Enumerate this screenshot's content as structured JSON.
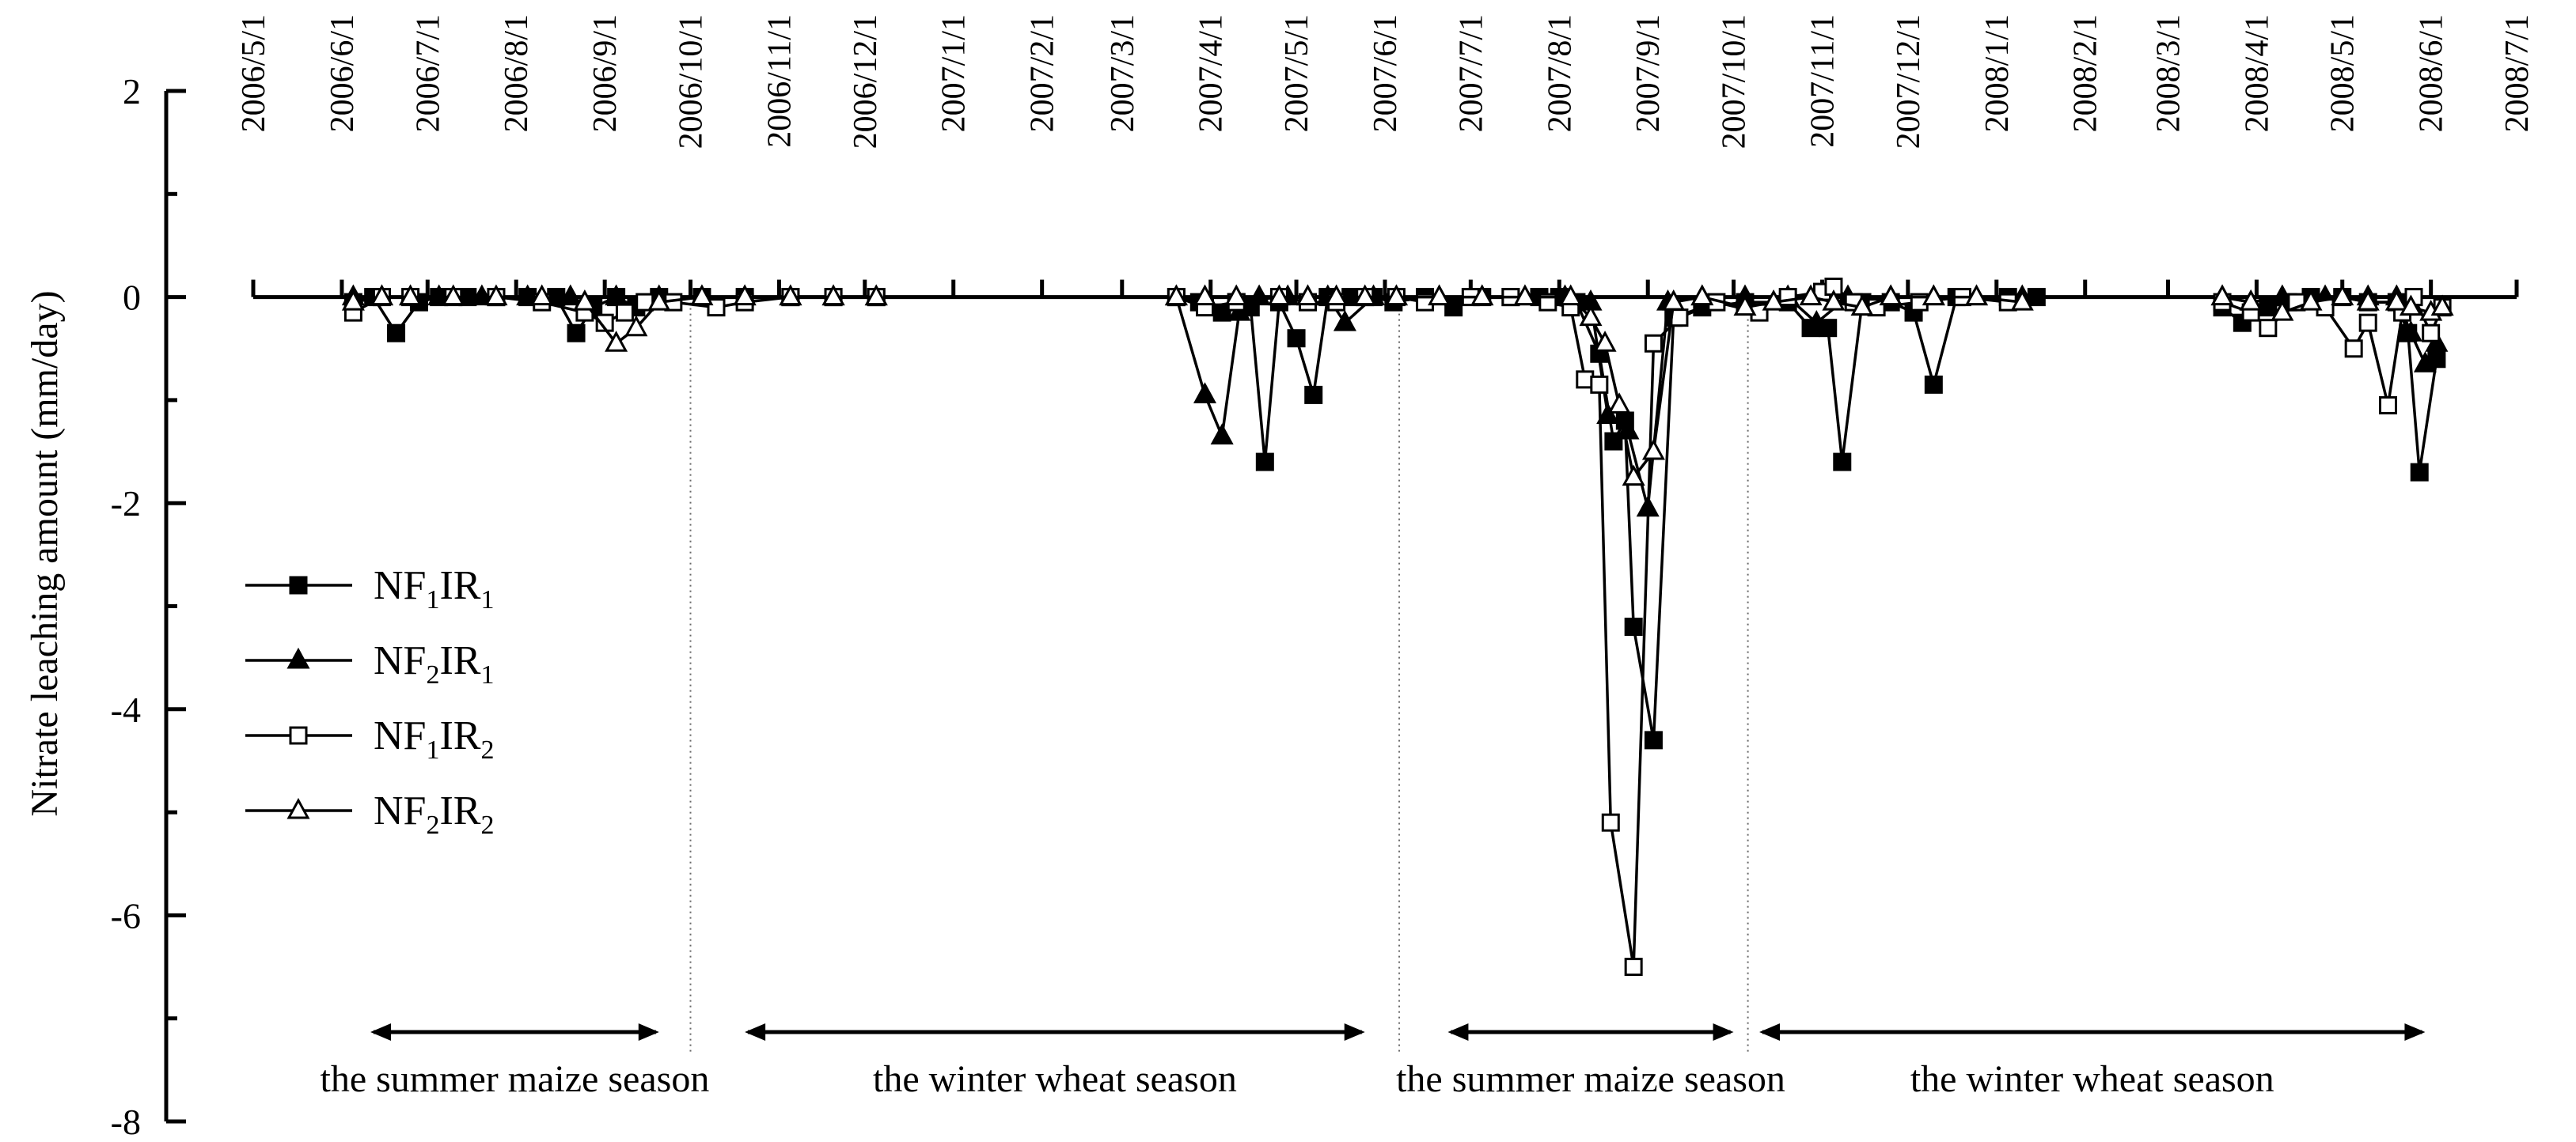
{
  "chart_data": {
    "type": "line",
    "ylabel": "Nitrate leaching amount (mm/day)",
    "ylim": [
      -8,
      2
    ],
    "yticks": [
      2,
      0,
      -2,
      -4,
      -6,
      -8
    ],
    "x_tick_labels": [
      "2006/5/1",
      "2006/6/1",
      "2006/7/1",
      "2006/8/1",
      "2006/9/1",
      "2006/10/1",
      "2006/11/1",
      "2006/12/1",
      "2007/1/1",
      "2007/2/1",
      "2007/3/1",
      "2007/4/1",
      "2007/5/1",
      "2007/6/1",
      "2007/7/1",
      "2007/8/1",
      "2007/9/1",
      "2007/10/1",
      "2007/11/1",
      "2007/12/1",
      "2008/1/1",
      "2008/2/1",
      "2008/3/1",
      "2008/4/1",
      "2008/5/1",
      "2008/6/1",
      "2008/7/1"
    ],
    "xlim": [
      "2006/5/1",
      "2008/7/1"
    ],
    "season_dividers": [
      "2006/10/1",
      "2007/6/6",
      "2007/10/6"
    ],
    "season_labels": [
      {
        "text": "the summer maize season",
        "start": "2006/6/11",
        "end": "2006/9/20"
      },
      {
        "text": "the winter wheat season",
        "start": "2006/10/20",
        "end": "2007/5/25"
      },
      {
        "text": "the summer maize season",
        "start": "2007/6/23",
        "end": "2007/10/1"
      },
      {
        "text": "the winter wheat season",
        "start": "2007/10/10",
        "end": "2008/5/30"
      }
    ],
    "legend_position": "left",
    "series": [
      {
        "name": "NF1IR1",
        "label_parts": [
          "NF",
          "1",
          "IR",
          "1"
        ],
        "marker": "square-filled",
        "points": [
          [
            "2006/6/5",
            -0.05
          ],
          [
            "2006/6/12",
            0
          ],
          [
            "2006/6/20",
            -0.35
          ],
          [
            "2006/6/28",
            -0.05
          ],
          [
            "2006/7/5",
            0
          ],
          [
            "2006/7/15",
            0
          ],
          [
            "2006/7/25",
            0
          ],
          [
            "2006/8/5",
            0
          ],
          [
            "2006/8/15",
            0
          ],
          [
            "2006/8/22",
            -0.35
          ],
          [
            "2006/8/28",
            -0.1
          ],
          [
            "2006/9/5",
            0
          ],
          [
            "2006/9/12",
            -0.1
          ],
          [
            "2006/9/20",
            0
          ],
          [
            "2006/10/5",
            0
          ],
          [
            "2006/10/20",
            0
          ],
          [
            "2006/11/5",
            0
          ],
          [
            "2006/11/20",
            0
          ],
          [
            "2006/12/5",
            0
          ],
          [
            "2007/3/20",
            0
          ],
          [
            "2007/3/28",
            -0.05
          ],
          [
            "2007/4/5",
            -0.15
          ],
          [
            "2007/4/10",
            -0.05
          ],
          [
            "2007/4/15",
            -0.1
          ],
          [
            "2007/4/20",
            -1.6
          ],
          [
            "2007/4/25",
            -0.05
          ],
          [
            "2007/5/1",
            -0.4
          ],
          [
            "2007/5/7",
            -0.95
          ],
          [
            "2007/5/12",
            0
          ],
          [
            "2007/5/20",
            0
          ],
          [
            "2007/5/28",
            0
          ],
          [
            "2007/6/4",
            -0.05
          ],
          [
            "2007/6/15",
            0
          ],
          [
            "2007/6/25",
            -0.1
          ],
          [
            "2007/7/5",
            0
          ],
          [
            "2007/7/15",
            0
          ],
          [
            "2007/7/25",
            0
          ],
          [
            "2007/8/1",
            0
          ],
          [
            "2007/8/7",
            -0.05
          ],
          [
            "2007/8/15",
            -0.55
          ],
          [
            "2007/8/20",
            -1.4
          ],
          [
            "2007/8/24",
            -1.2
          ],
          [
            "2007/8/27",
            -3.2
          ],
          [
            "2007/9/3",
            -4.3
          ],
          [
            "2007/9/10",
            -0.2
          ],
          [
            "2007/9/20",
            -0.1
          ],
          [
            "2007/10/5",
            -0.05
          ],
          [
            "2007/10/20",
            -0.05
          ],
          [
            "2007/10/28",
            -0.3
          ],
          [
            "2007/11/3",
            -0.3
          ],
          [
            "2007/11/8",
            -1.6
          ],
          [
            "2007/11/15",
            -0.05
          ],
          [
            "2007/11/25",
            -0.05
          ],
          [
            "2007/12/3",
            -0.15
          ],
          [
            "2007/12/10",
            -0.85
          ],
          [
            "2007/12/18",
            0
          ],
          [
            "2008/1/5",
            0
          ],
          [
            "2008/1/15",
            0
          ],
          [
            "2008/3/20",
            -0.1
          ],
          [
            "2008/3/27",
            -0.25
          ],
          [
            "2008/4/5",
            -0.1
          ],
          [
            "2008/4/12",
            -0.05
          ],
          [
            "2008/4/20",
            0
          ],
          [
            "2008/5/1",
            0
          ],
          [
            "2008/5/10",
            -0.05
          ],
          [
            "2008/5/20",
            -0.05
          ],
          [
            "2008/5/24",
            -0.35
          ],
          [
            "2008/5/28",
            -1.7
          ],
          [
            "2008/6/3",
            -0.6
          ]
        ]
      },
      {
        "name": "NF2IR1",
        "label_parts": [
          "NF",
          "2",
          "IR",
          "1"
        ],
        "marker": "triangle-filled",
        "points": [
          [
            "2006/6/5",
            0
          ],
          [
            "2006/6/15",
            0
          ],
          [
            "2006/6/25",
            0
          ],
          [
            "2006/7/5",
            0
          ],
          [
            "2006/7/20",
            0
          ],
          [
            "2006/8/5",
            0
          ],
          [
            "2006/8/20",
            0
          ],
          [
            "2006/9/5",
            0
          ],
          [
            "2006/9/20",
            0
          ],
          [
            "2006/10/5",
            0
          ],
          [
            "2006/10/20",
            0
          ],
          [
            "2006/11/5",
            0
          ],
          [
            "2006/11/20",
            0
          ],
          [
            "2006/12/5",
            0
          ],
          [
            "2007/3/20",
            0
          ],
          [
            "2007/3/30",
            -0.95
          ],
          [
            "2007/4/5",
            -1.35
          ],
          [
            "2007/4/11",
            -0.15
          ],
          [
            "2007/4/18",
            0
          ],
          [
            "2007/4/28",
            0
          ],
          [
            "2007/5/5",
            0
          ],
          [
            "2007/5/12",
            0
          ],
          [
            "2007/5/18",
            -0.25
          ],
          [
            "2007/5/28",
            0
          ],
          [
            "2007/6/5",
            0
          ],
          [
            "2007/6/20",
            0
          ],
          [
            "2007/7/5",
            0
          ],
          [
            "2007/7/20",
            0
          ],
          [
            "2007/8/3",
            0
          ],
          [
            "2007/8/12",
            -0.05
          ],
          [
            "2007/8/18",
            -1.15
          ],
          [
            "2007/8/25",
            -1.3
          ],
          [
            "2007/9/1",
            -2.05
          ],
          [
            "2007/9/8",
            -0.05
          ],
          [
            "2007/9/20",
            0
          ],
          [
            "2007/10/5",
            0
          ],
          [
            "2007/10/20",
            0
          ],
          [
            "2007/10/30",
            -0.25
          ],
          [
            "2007/11/10",
            0
          ],
          [
            "2007/11/25",
            0
          ],
          [
            "2007/12/10",
            0
          ],
          [
            "2007/12/25",
            0
          ],
          [
            "2008/1/10",
            0
          ],
          [
            "2008/3/20",
            0
          ],
          [
            "2008/3/30",
            -0.05
          ],
          [
            "2008/4/10",
            0
          ],
          [
            "2008/4/25",
            0
          ],
          [
            "2008/5/10",
            0
          ],
          [
            "2008/5/20",
            0
          ],
          [
            "2008/5/25",
            -0.35
          ],
          [
            "2008/5/30",
            -0.65
          ],
          [
            "2008/6/3",
            -0.45
          ]
        ]
      },
      {
        "name": "NF1IR2",
        "label_parts": [
          "NF",
          "1",
          "IR",
          "2"
        ],
        "marker": "square-open",
        "points": [
          [
            "2006/6/5",
            -0.15
          ],
          [
            "2006/6/15",
            0
          ],
          [
            "2006/6/25",
            0
          ],
          [
            "2006/7/10",
            0
          ],
          [
            "2006/7/25",
            0
          ],
          [
            "2006/8/10",
            -0.05
          ],
          [
            "2006/8/25",
            -0.15
          ],
          [
            "2006/9/1",
            -0.25
          ],
          [
            "2006/9/8",
            -0.15
          ],
          [
            "2006/9/15",
            -0.05
          ],
          [
            "2006/9/25",
            -0.05
          ],
          [
            "2006/10/10",
            -0.1
          ],
          [
            "2006/10/20",
            -0.05
          ],
          [
            "2006/11/5",
            0
          ],
          [
            "2006/11/20",
            0
          ],
          [
            "2006/12/5",
            0
          ],
          [
            "2007/3/20",
            0
          ],
          [
            "2007/3/30",
            -0.1
          ],
          [
            "2007/4/10",
            -0.05
          ],
          [
            "2007/4/25",
            0
          ],
          [
            "2007/5/5",
            -0.05
          ],
          [
            "2007/5/15",
            -0.05
          ],
          [
            "2007/5/25",
            0
          ],
          [
            "2007/6/5",
            0
          ],
          [
            "2007/6/15",
            -0.05
          ],
          [
            "2007/7/1",
            0
          ],
          [
            "2007/7/15",
            0
          ],
          [
            "2007/7/28",
            -0.05
          ],
          [
            "2007/8/5",
            -0.1
          ],
          [
            "2007/8/10",
            -0.8
          ],
          [
            "2007/8/15",
            -0.85
          ],
          [
            "2007/8/19",
            -5.1
          ],
          [
            "2007/8/27",
            -6.5
          ],
          [
            "2007/9/3",
            -0.45
          ],
          [
            "2007/9/12",
            -0.2
          ],
          [
            "2007/9/25",
            -0.05
          ],
          [
            "2007/10/10",
            -0.15
          ],
          [
            "2007/10/20",
            0
          ],
          [
            "2007/11/1",
            0.05
          ],
          [
            "2007/11/5",
            0.1
          ],
          [
            "2007/11/12",
            -0.05
          ],
          [
            "2007/11/20",
            -0.1
          ],
          [
            "2007/12/5",
            -0.05
          ],
          [
            "2007/12/20",
            0
          ],
          [
            "2008/1/5",
            -0.05
          ],
          [
            "2008/3/20",
            -0.05
          ],
          [
            "2008/3/30",
            -0.15
          ],
          [
            "2008/4/5",
            -0.3
          ],
          [
            "2008/4/15",
            -0.05
          ],
          [
            "2008/4/25",
            -0.1
          ],
          [
            "2008/5/5",
            -0.5
          ],
          [
            "2008/5/10",
            -0.25
          ],
          [
            "2008/5/17",
            -1.05
          ],
          [
            "2008/5/22",
            -0.15
          ],
          [
            "2008/5/26",
            0
          ],
          [
            "2008/6/1",
            -0.35
          ],
          [
            "2008/6/5",
            -0.1
          ]
        ]
      },
      {
        "name": "NF2IR2",
        "label_parts": [
          "NF",
          "2",
          "IR",
          "2"
        ],
        "marker": "triangle-open",
        "points": [
          [
            "2006/6/5",
            -0.05
          ],
          [
            "2006/6/15",
            0
          ],
          [
            "2006/6/25",
            0
          ],
          [
            "2006/7/10",
            0
          ],
          [
            "2006/7/25",
            0
          ],
          [
            "2006/8/10",
            0
          ],
          [
            "2006/8/25",
            -0.05
          ],
          [
            "2006/9/5",
            -0.45
          ],
          [
            "2006/9/12",
            -0.3
          ],
          [
            "2006/9/20",
            -0.05
          ],
          [
            "2006/10/5",
            0
          ],
          [
            "2006/10/20",
            0
          ],
          [
            "2006/11/5",
            0
          ],
          [
            "2006/11/20",
            0
          ],
          [
            "2006/12/5",
            0
          ],
          [
            "2007/3/20",
            0
          ],
          [
            "2007/3/30",
            0
          ],
          [
            "2007/4/10",
            0
          ],
          [
            "2007/4/25",
            0
          ],
          [
            "2007/5/5",
            0
          ],
          [
            "2007/5/15",
            0
          ],
          [
            "2007/5/25",
            0
          ],
          [
            "2007/6/5",
            0
          ],
          [
            "2007/6/20",
            0
          ],
          [
            "2007/7/5",
            0
          ],
          [
            "2007/7/20",
            0
          ],
          [
            "2007/8/5",
            0
          ],
          [
            "2007/8/12",
            -0.2
          ],
          [
            "2007/8/17",
            -0.45
          ],
          [
            "2007/8/22",
            -1.05
          ],
          [
            "2007/8/27",
            -1.75
          ],
          [
            "2007/9/3",
            -1.5
          ],
          [
            "2007/9/10",
            -0.05
          ],
          [
            "2007/9/20",
            0
          ],
          [
            "2007/10/5",
            -0.1
          ],
          [
            "2007/10/15",
            -0.05
          ],
          [
            "2007/10/28",
            0
          ],
          [
            "2007/11/5",
            -0.05
          ],
          [
            "2007/11/15",
            -0.1
          ],
          [
            "2007/11/25",
            0
          ],
          [
            "2007/12/10",
            0
          ],
          [
            "2007/12/25",
            0
          ],
          [
            "2008/1/10",
            -0.05
          ],
          [
            "2008/3/20",
            0
          ],
          [
            "2008/3/30",
            -0.05
          ],
          [
            "2008/4/10",
            -0.15
          ],
          [
            "2008/4/20",
            -0.05
          ],
          [
            "2008/5/1",
            0
          ],
          [
            "2008/5/10",
            -0.05
          ],
          [
            "2008/5/20",
            -0.05
          ],
          [
            "2008/5/25",
            -0.1
          ],
          [
            "2008/6/1",
            -0.15
          ],
          [
            "2008/6/5",
            -0.1
          ]
        ]
      }
    ]
  }
}
